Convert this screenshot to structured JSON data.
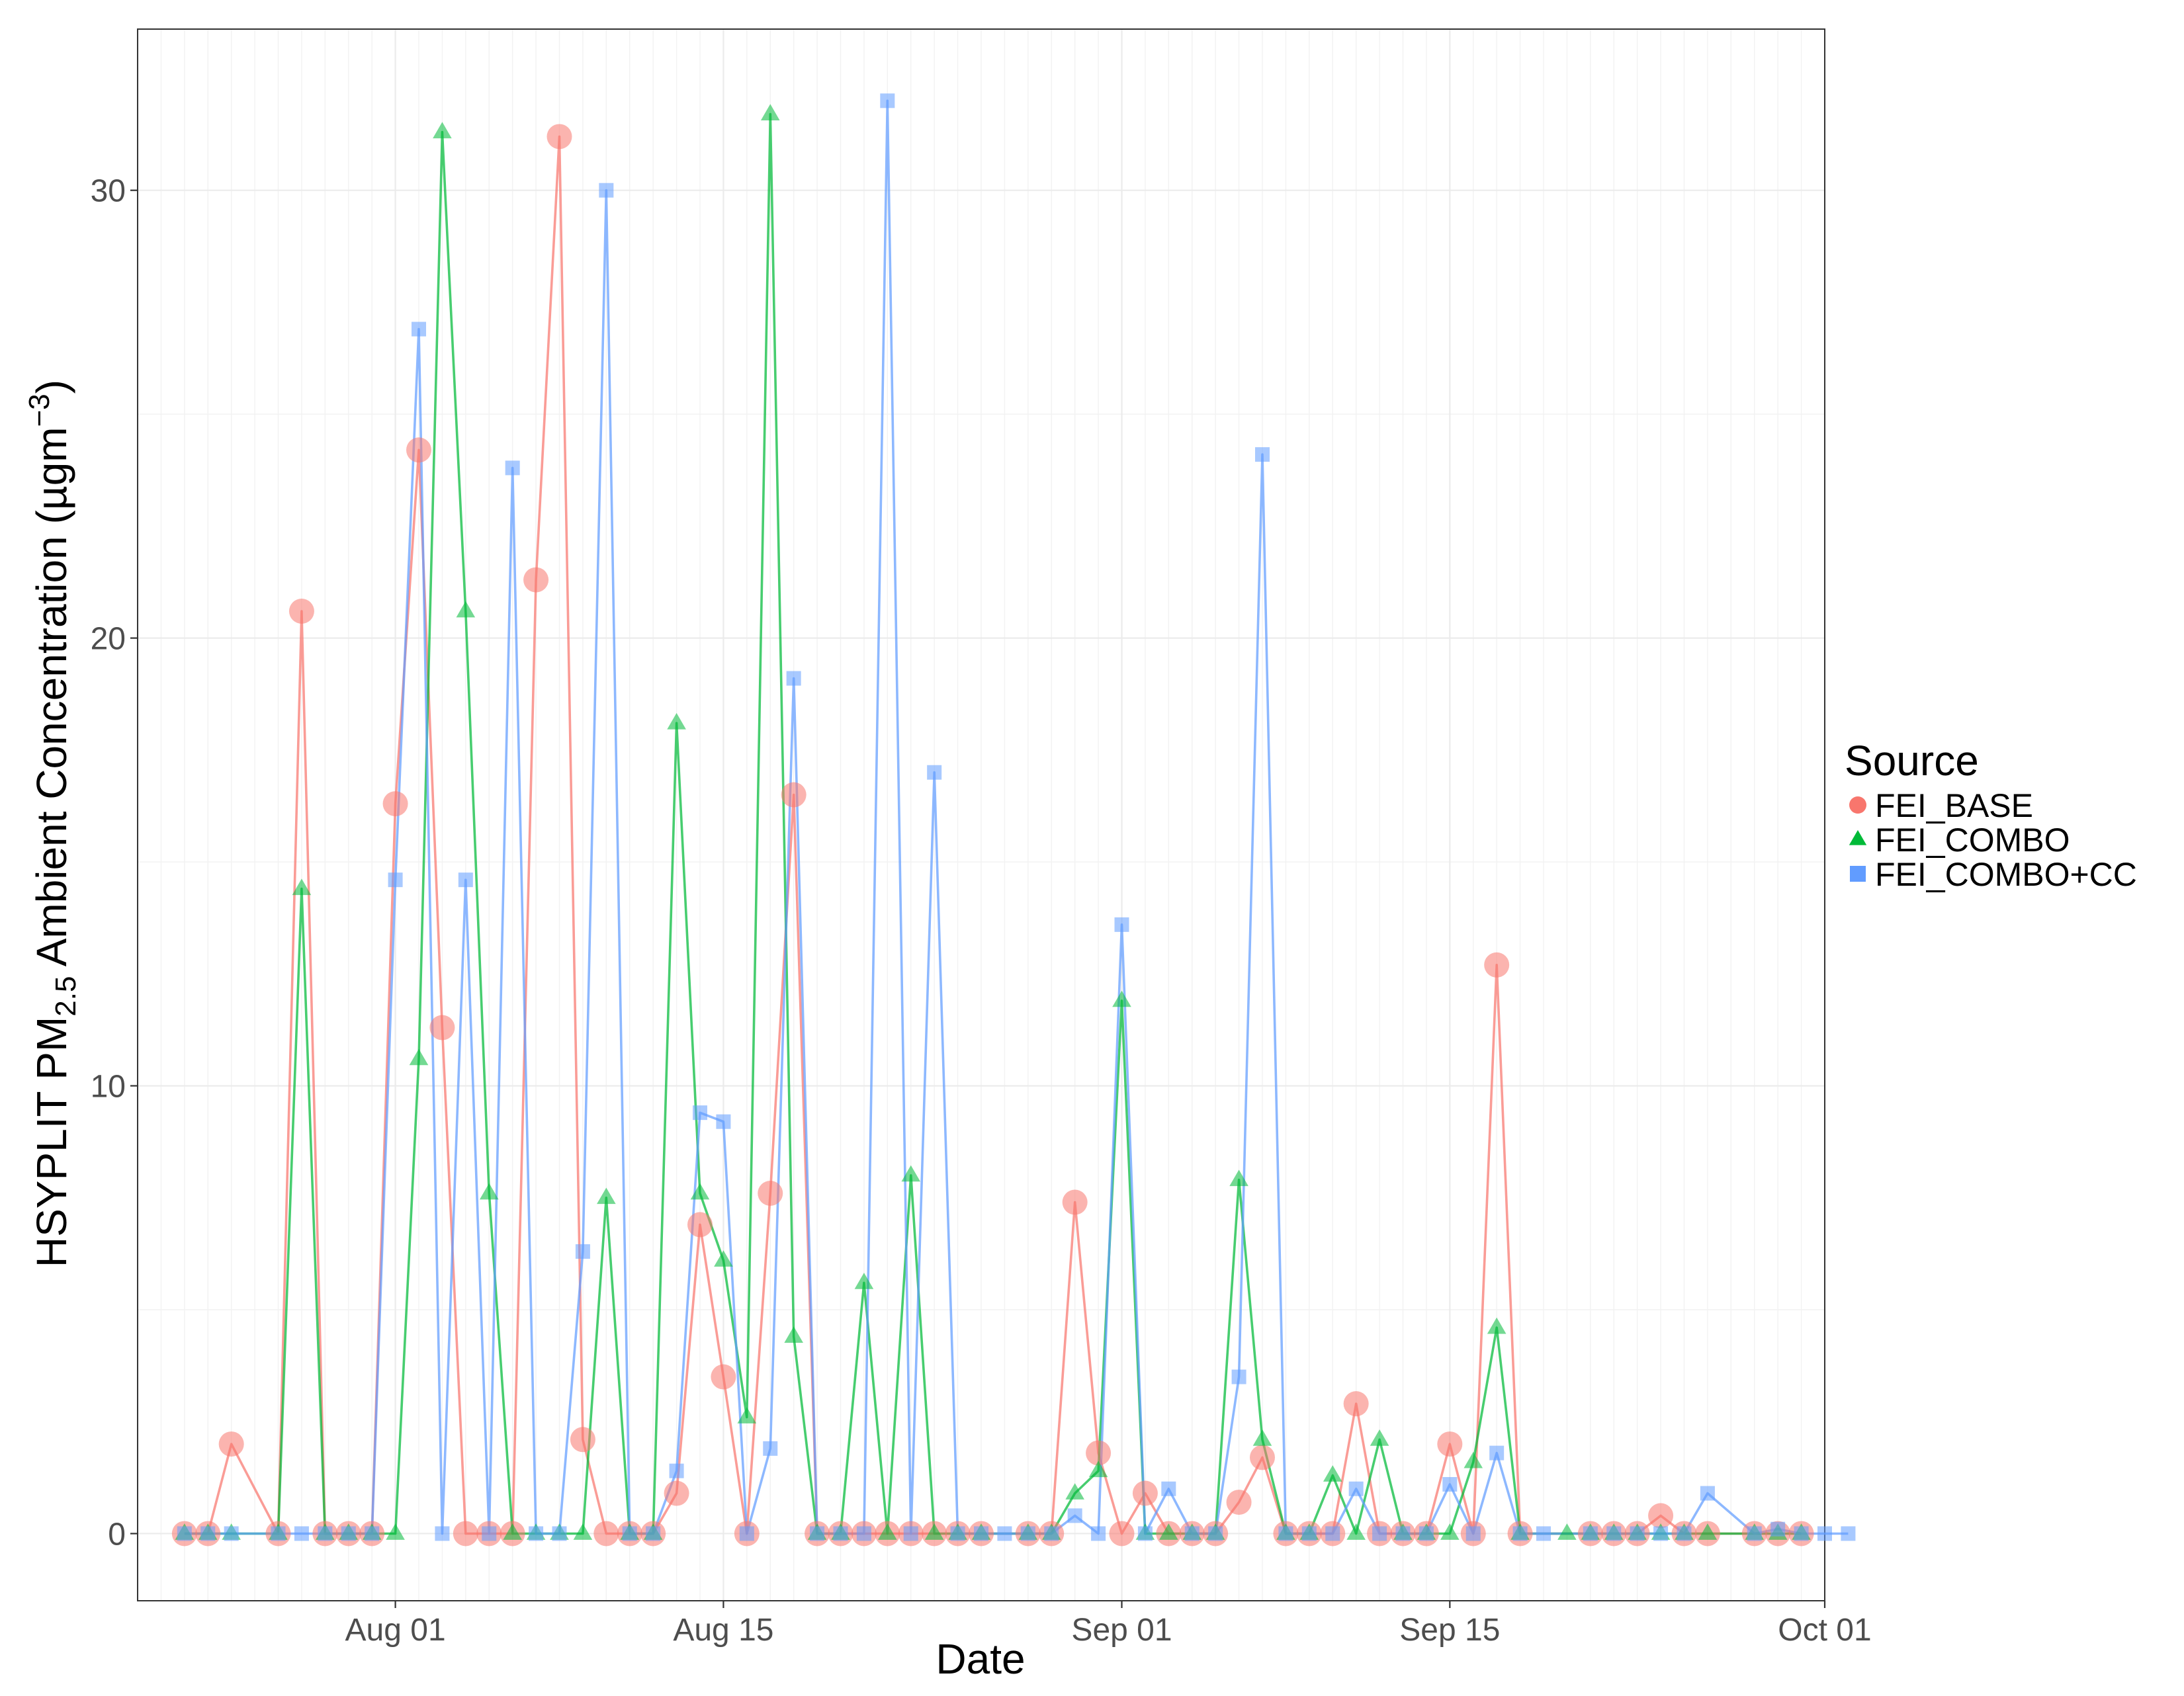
{
  "chart_data": {
    "type": "line",
    "xlabel": "Date",
    "ylabel_parts": {
      "pre": "HSYPLIT PM",
      "sub": "2.5",
      "mid": "  Ambient Concentration (µgm",
      "sup": "−3",
      "post": ")"
    },
    "x_domain": [
      "2015-07-21",
      "2015-10-01"
    ],
    "ylim": [
      -1.5,
      33.6
    ],
    "x_ticks": [
      {
        "date": "2015-08-01",
        "label": "Aug 01"
      },
      {
        "date": "2015-08-15",
        "label": "Aug 15"
      },
      {
        "date": "2015-09-01",
        "label": "Sep 01"
      },
      {
        "date": "2015-09-15",
        "label": "Sep 15"
      },
      {
        "date": "2015-10-01",
        "label": "Oct 01"
      }
    ],
    "y_ticks": [
      {
        "value": 0,
        "label": "0"
      },
      {
        "value": 10,
        "label": "10"
      },
      {
        "value": 20,
        "label": "20"
      },
      {
        "value": 30,
        "label": "30"
      }
    ],
    "grid": true,
    "legend": {
      "title": "Source",
      "placement": "right"
    },
    "series": [
      {
        "name": "FEI_BASE",
        "color": "#F8766D",
        "marker": "circle",
        "points": [
          [
            "2015-07-23",
            0
          ],
          [
            "2015-07-24",
            0
          ],
          [
            "2015-07-25",
            2.0
          ],
          [
            "2015-07-27",
            0
          ],
          [
            "2015-07-28",
            20.6
          ],
          [
            "2015-07-29",
            0
          ],
          [
            "2015-07-30",
            0
          ],
          [
            "2015-07-31",
            0
          ],
          [
            "2015-08-01",
            16.3
          ],
          [
            "2015-08-02",
            24.2
          ],
          [
            "2015-08-03",
            11.3
          ],
          [
            "2015-08-04",
            0
          ],
          [
            "2015-08-05",
            0
          ],
          [
            "2015-08-06",
            0
          ],
          [
            "2015-08-07",
            21.3
          ],
          [
            "2015-08-08",
            31.2
          ],
          [
            "2015-08-09",
            2.1
          ],
          [
            "2015-08-10",
            0
          ],
          [
            "2015-08-11",
            0
          ],
          [
            "2015-08-12",
            0
          ],
          [
            "2015-08-13",
            0.9
          ],
          [
            "2015-08-14",
            6.9
          ],
          [
            "2015-08-15",
            3.5
          ],
          [
            "2015-08-16",
            0
          ],
          [
            "2015-08-17",
            7.6
          ],
          [
            "2015-08-18",
            16.5
          ],
          [
            "2015-08-19",
            0
          ],
          [
            "2015-08-20",
            0
          ],
          [
            "2015-08-21",
            0
          ],
          [
            "2015-08-22",
            0
          ],
          [
            "2015-08-23",
            0
          ],
          [
            "2015-08-24",
            0
          ],
          [
            "2015-08-25",
            0
          ],
          [
            "2015-08-26",
            0
          ],
          [
            "2015-08-28",
            0
          ],
          [
            "2015-08-29",
            0
          ],
          [
            "2015-08-30",
            7.4
          ],
          [
            "2015-08-31",
            1.8
          ],
          [
            "2015-09-01",
            0
          ],
          [
            "2015-09-02",
            0.9
          ],
          [
            "2015-09-03",
            0
          ],
          [
            "2015-09-04",
            0
          ],
          [
            "2015-09-05",
            0
          ],
          [
            "2015-09-06",
            0.7
          ],
          [
            "2015-09-07",
            1.7
          ],
          [
            "2015-09-08",
            0
          ],
          [
            "2015-09-09",
            0
          ],
          [
            "2015-09-10",
            0
          ],
          [
            "2015-09-11",
            2.9
          ],
          [
            "2015-09-12",
            0
          ],
          [
            "2015-09-13",
            0
          ],
          [
            "2015-09-14",
            0
          ],
          [
            "2015-09-15",
            2.0
          ],
          [
            "2015-09-16",
            0
          ],
          [
            "2015-09-17",
            12.7
          ],
          [
            "2015-09-18",
            0
          ],
          [
            "2015-09-21",
            0
          ],
          [
            "2015-09-22",
            0
          ],
          [
            "2015-09-23",
            0
          ],
          [
            "2015-09-24",
            0.4
          ],
          [
            "2015-09-25",
            0
          ],
          [
            "2015-09-26",
            0
          ],
          [
            "2015-09-28",
            0
          ],
          [
            "2015-09-29",
            0
          ],
          [
            "2015-09-30",
            0
          ]
        ]
      },
      {
        "name": "FEI_COMBO",
        "color": "#00BA38",
        "marker": "triangle",
        "points": [
          [
            "2015-07-23",
            0
          ],
          [
            "2015-07-24",
            0
          ],
          [
            "2015-07-25",
            0
          ],
          [
            "2015-07-27",
            0
          ],
          [
            "2015-07-28",
            14.4
          ],
          [
            "2015-07-29",
            0
          ],
          [
            "2015-07-30",
            0
          ],
          [
            "2015-07-31",
            0
          ],
          [
            "2015-08-01",
            0
          ],
          [
            "2015-08-02",
            10.6
          ],
          [
            "2015-08-03",
            31.3
          ],
          [
            "2015-08-04",
            20.6
          ],
          [
            "2015-08-05",
            7.6
          ],
          [
            "2015-08-06",
            0
          ],
          [
            "2015-08-07",
            0
          ],
          [
            "2015-08-08",
            0
          ],
          [
            "2015-08-09",
            0
          ],
          [
            "2015-08-10",
            7.5
          ],
          [
            "2015-08-11",
            0
          ],
          [
            "2015-08-12",
            0
          ],
          [
            "2015-08-13",
            18.1
          ],
          [
            "2015-08-14",
            7.6
          ],
          [
            "2015-08-15",
            6.1
          ],
          [
            "2015-08-16",
            2.6
          ],
          [
            "2015-08-17",
            31.7
          ],
          [
            "2015-08-18",
            4.4
          ],
          [
            "2015-08-19",
            0
          ],
          [
            "2015-08-20",
            0
          ],
          [
            "2015-08-21",
            5.6
          ],
          [
            "2015-08-22",
            0
          ],
          [
            "2015-08-23",
            8.0
          ],
          [
            "2015-08-24",
            0
          ],
          [
            "2015-08-25",
            0
          ],
          [
            "2015-08-26",
            0
          ],
          [
            "2015-08-28",
            0
          ],
          [
            "2015-08-29",
            0
          ],
          [
            "2015-08-30",
            0.9
          ],
          [
            "2015-08-31",
            1.4
          ],
          [
            "2015-09-01",
            11.9
          ],
          [
            "2015-09-02",
            0
          ],
          [
            "2015-09-03",
            0
          ],
          [
            "2015-09-04",
            0
          ],
          [
            "2015-09-05",
            0
          ],
          [
            "2015-09-06",
            7.9
          ],
          [
            "2015-09-07",
            2.1
          ],
          [
            "2015-09-08",
            0
          ],
          [
            "2015-09-09",
            0
          ],
          [
            "2015-09-10",
            1.3
          ],
          [
            "2015-09-11",
            0
          ],
          [
            "2015-09-12",
            2.1
          ],
          [
            "2015-09-13",
            0
          ],
          [
            "2015-09-14",
            0
          ],
          [
            "2015-09-15",
            0
          ],
          [
            "2015-09-16",
            1.6
          ],
          [
            "2015-09-17",
            4.6
          ],
          [
            "2015-09-18",
            0
          ],
          [
            "2015-09-20",
            0
          ],
          [
            "2015-09-21",
            0
          ],
          [
            "2015-09-22",
            0
          ],
          [
            "2015-09-23",
            0
          ],
          [
            "2015-09-24",
            0
          ],
          [
            "2015-09-25",
            0
          ],
          [
            "2015-09-26",
            0
          ],
          [
            "2015-09-28",
            0
          ],
          [
            "2015-09-29",
            0
          ],
          [
            "2015-09-30",
            0
          ]
        ]
      },
      {
        "name": "FEI_COMBO+CC",
        "color": "#619CFF",
        "marker": "square",
        "points": [
          [
            "2015-07-23",
            0
          ],
          [
            "2015-07-24",
            0
          ],
          [
            "2015-07-25",
            0
          ],
          [
            "2015-07-27",
            0
          ],
          [
            "2015-07-28",
            0
          ],
          [
            "2015-07-29",
            0
          ],
          [
            "2015-07-30",
            0
          ],
          [
            "2015-07-31",
            0
          ],
          [
            "2015-08-01",
            14.6
          ],
          [
            "2015-08-02",
            26.9
          ],
          [
            "2015-08-03",
            0
          ],
          [
            "2015-08-04",
            14.6
          ],
          [
            "2015-08-05",
            0
          ],
          [
            "2015-08-06",
            23.8
          ],
          [
            "2015-08-07",
            0
          ],
          [
            "2015-08-08",
            0
          ],
          [
            "2015-08-09",
            6.3
          ],
          [
            "2015-08-10",
            30.0
          ],
          [
            "2015-08-11",
            0
          ],
          [
            "2015-08-12",
            0
          ],
          [
            "2015-08-13",
            1.4
          ],
          [
            "2015-08-14",
            9.4
          ],
          [
            "2015-08-15",
            9.2
          ],
          [
            "2015-08-16",
            0
          ],
          [
            "2015-08-17",
            1.9
          ],
          [
            "2015-08-18",
            19.1
          ],
          [
            "2015-08-19",
            0
          ],
          [
            "2015-08-20",
            0
          ],
          [
            "2015-08-21",
            0
          ],
          [
            "2015-08-22",
            32.0
          ],
          [
            "2015-08-23",
            0
          ],
          [
            "2015-08-24",
            17.0
          ],
          [
            "2015-08-25",
            0
          ],
          [
            "2015-08-26",
            0
          ],
          [
            "2015-08-27",
            0
          ],
          [
            "2015-08-28",
            0
          ],
          [
            "2015-08-29",
            0
          ],
          [
            "2015-08-30",
            0.4
          ],
          [
            "2015-08-31",
            0
          ],
          [
            "2015-09-01",
            13.6
          ],
          [
            "2015-09-02",
            0
          ],
          [
            "2015-09-03",
            1.0
          ],
          [
            "2015-09-04",
            0
          ],
          [
            "2015-09-05",
            0
          ],
          [
            "2015-09-06",
            3.5
          ],
          [
            "2015-09-07",
            24.1
          ],
          [
            "2015-09-08",
            0
          ],
          [
            "2015-09-09",
            0
          ],
          [
            "2015-09-10",
            0
          ],
          [
            "2015-09-11",
            1.0
          ],
          [
            "2015-09-12",
            0
          ],
          [
            "2015-09-13",
            0
          ],
          [
            "2015-09-14",
            0
          ],
          [
            "2015-09-15",
            1.1
          ],
          [
            "2015-09-16",
            0
          ],
          [
            "2015-09-17",
            1.8
          ],
          [
            "2015-09-18",
            0
          ],
          [
            "2015-09-19",
            0
          ],
          [
            "2015-09-21",
            0
          ],
          [
            "2015-09-22",
            0
          ],
          [
            "2015-09-23",
            0
          ],
          [
            "2015-09-24",
            0
          ],
          [
            "2015-09-25",
            0
          ],
          [
            "2015-09-26",
            0.9
          ],
          [
            "2015-09-28",
            0
          ],
          [
            "2015-09-29",
            0.1
          ],
          [
            "2015-09-30",
            0
          ],
          [
            "2015-10-01",
            0
          ],
          [
            "2015-10-02",
            0
          ]
        ]
      }
    ]
  }
}
